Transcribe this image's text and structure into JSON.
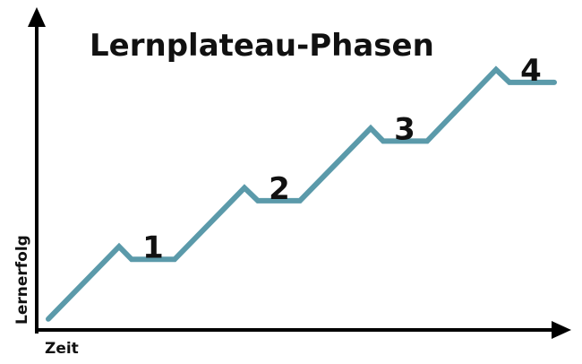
{
  "chart_data": {
    "type": "line",
    "title": "Lernplateau-Phasen",
    "xlabel": "Zeit",
    "ylabel": "Lernerfolg",
    "series": [
      {
        "color": "#5b9aaa",
        "points": [
          {
            "x": 0,
            "y": 0
          },
          {
            "x": 79,
            "y": 79
          },
          {
            "x": 93,
            "y": 65
          },
          {
            "x": 141,
            "y": 65
          },
          {
            "x": 219,
            "y": 143
          },
          {
            "x": 234,
            "y": 129
          },
          {
            "x": 281,
            "y": 129
          },
          {
            "x": 360,
            "y": 208
          },
          {
            "x": 374,
            "y": 194
          },
          {
            "x": 423,
            "y": 194
          },
          {
            "x": 500,
            "y": 272
          },
          {
            "x": 515,
            "y": 258
          },
          {
            "x": 565,
            "y": 258
          }
        ]
      }
    ],
    "annotations": [
      {
        "text": "1",
        "x": 117,
        "y": 67
      },
      {
        "text": "2",
        "x": 258,
        "y": 131
      },
      {
        "text": "3",
        "x": 398,
        "y": 196
      },
      {
        "text": "4",
        "x": 539,
        "y": 260
      }
    ],
    "xlim": [
      -13,
      596
    ],
    "ylim": [
      -8,
      340
    ],
    "axis_color": "#000000",
    "grid": false,
    "legend": "none"
  }
}
